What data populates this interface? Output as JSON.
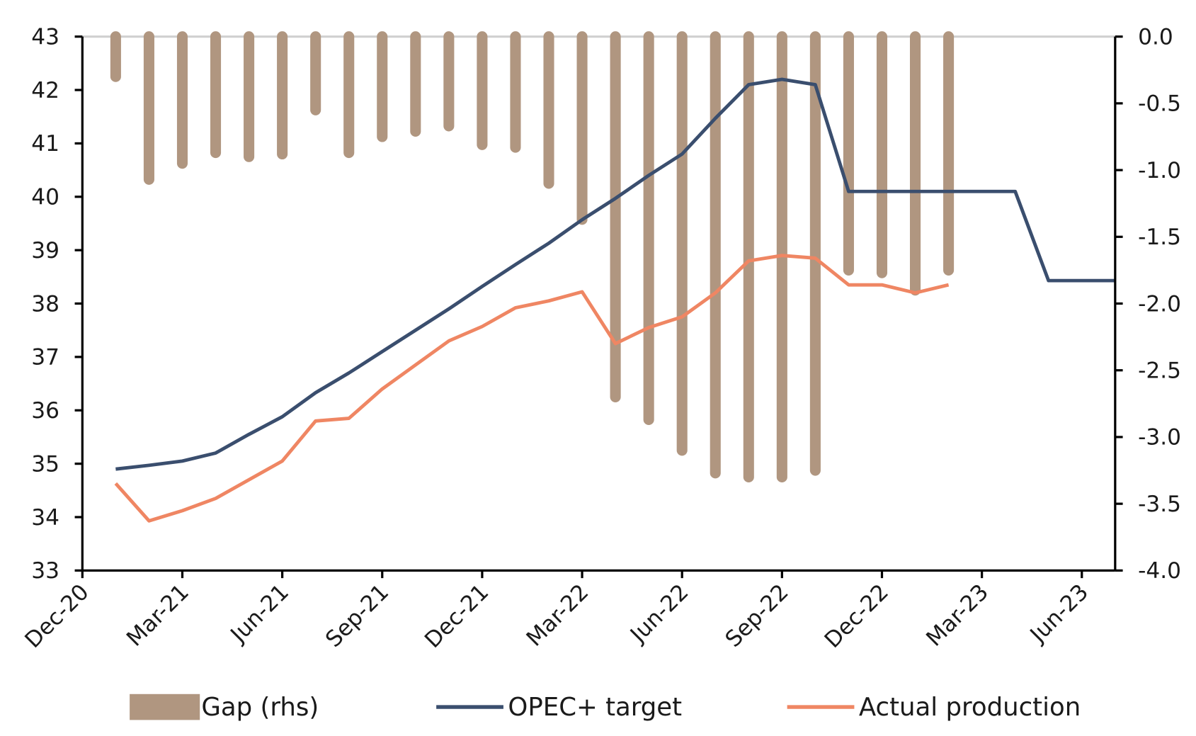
{
  "chart_data": {
    "type": "bar_line",
    "categories": [
      "Dec-20",
      null,
      null,
      "Mar-21",
      null,
      null,
      "Jun-21",
      null,
      null,
      "Sep-21",
      null,
      null,
      "Dec-21",
      null,
      null,
      "Mar-22",
      null,
      null,
      "Jun-22",
      null,
      null,
      "Sep-22",
      null,
      null,
      "Dec-22",
      null,
      null,
      "Mar-23",
      null,
      null,
      "Jun-23",
      null
    ],
    "ylim": [
      33,
      43
    ],
    "yticks": [
      33,
      34,
      35,
      36,
      37,
      38,
      39,
      40,
      41,
      42,
      43
    ],
    "y2lim": [
      -4,
      0
    ],
    "y2ticks": [
      {
        "value": -4,
        "label": "-4.0"
      },
      -3.5,
      {
        "value": -3,
        "label": "-3.0"
      },
      -2.5,
      {
        "value": -2,
        "label": "-2.0"
      },
      -1.5,
      {
        "value": -1,
        "label": "-1.0"
      },
      -0.5,
      {
        "value": 0,
        "label": "0.0"
      }
    ],
    "series": [
      {
        "name": "Gap (rhs)",
        "type": "bar",
        "axis": "y2",
        "color": "#b09680",
        "values": [
          null,
          -0.3,
          -1.07,
          -0.95,
          -0.87,
          -0.9,
          -0.88,
          -0.55,
          -0.87,
          -0.75,
          -0.71,
          -0.67,
          -0.81,
          -0.83,
          -1.1,
          -1.37,
          -2.7,
          -2.87,
          -3.1,
          -3.27,
          -3.3,
          -3.3,
          -3.25,
          -1.75,
          -1.77,
          -1.9,
          -1.75,
          null,
          null,
          null,
          null,
          null
        ]
      },
      {
        "name": "OPEC+ target",
        "type": "line",
        "color": "#3a4e6e",
        "values": [
          null,
          34.9,
          34.97,
          35.05,
          35.2,
          35.55,
          35.88,
          36.33,
          36.7,
          37.1,
          37.5,
          37.9,
          38.32,
          38.73,
          39.13,
          39.57,
          39.97,
          40.4,
          40.8,
          41.47,
          42.1,
          42.2,
          42.1,
          40.1,
          40.1,
          40.1,
          40.1,
          40.1,
          40.1,
          38.43,
          38.43,
          38.43
        ]
      },
      {
        "name": "Actual production",
        "type": "line",
        "color": "#ef8663",
        "values": [
          null,
          34.63,
          33.93,
          34.12,
          34.35,
          34.7,
          35.05,
          35.8,
          35.85,
          36.4,
          36.85,
          37.3,
          37.57,
          37.92,
          38.05,
          38.22,
          37.25,
          37.55,
          37.75,
          38.2,
          38.8,
          38.9,
          38.85,
          38.35,
          38.35,
          38.2,
          38.35,
          null,
          null,
          null,
          null,
          null
        ]
      }
    ]
  }
}
